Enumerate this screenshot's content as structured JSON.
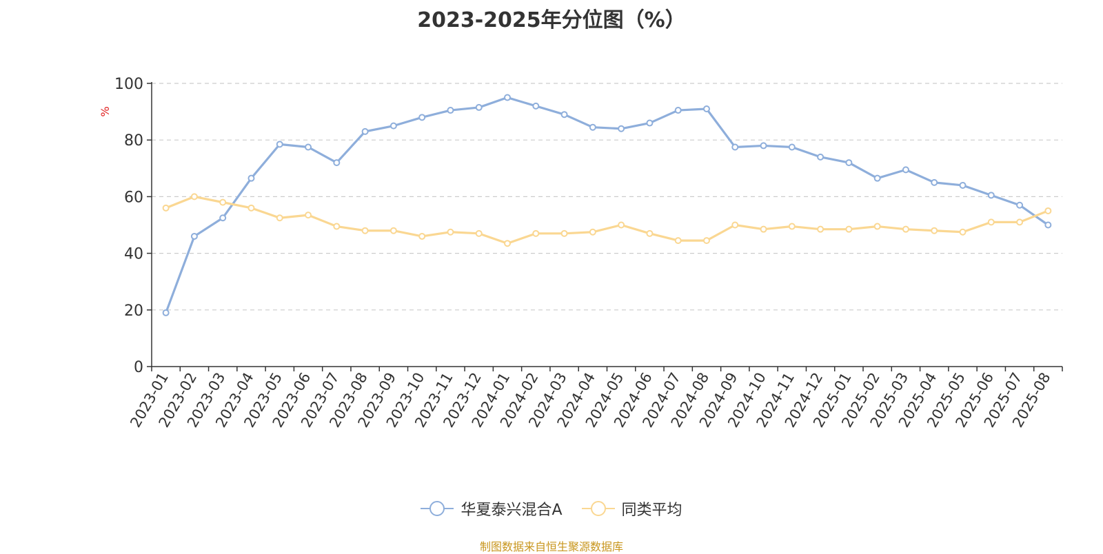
{
  "chart_data": {
    "type": "line",
    "title": "2023-2025年分位图（%）",
    "ylabel": "%",
    "xlabel": "",
    "ylim": [
      0,
      100
    ],
    "yticks": [
      0,
      20,
      40,
      60,
      80,
      100
    ],
    "grid": "horizontal-dashed",
    "legend_position": "bottom-center",
    "categories": [
      "2023-01",
      "2023-02",
      "2023-03",
      "2023-04",
      "2023-05",
      "2023-06",
      "2023-07",
      "2023-08",
      "2023-09",
      "2023-10",
      "2023-11",
      "2023-12",
      "2024-01",
      "2024-02",
      "2024-03",
      "2024-04",
      "2024-05",
      "2024-06",
      "2024-07",
      "2024-08",
      "2024-09",
      "2024-10",
      "2024-11",
      "2024-12",
      "2025-01",
      "2025-02",
      "2025-03",
      "2025-04",
      "2025-05",
      "2025-06",
      "2025-07",
      "2025-08"
    ],
    "series": [
      {
        "name": "华夏泰兴混合A",
        "color": "#8eaedb",
        "values": [
          19,
          46,
          52.5,
          66.5,
          78.5,
          77.5,
          72,
          83,
          85,
          88,
          90.5,
          91.5,
          95,
          92,
          89,
          84.5,
          84,
          86,
          90.5,
          91,
          77.5,
          78,
          77.5,
          74,
          72,
          66.5,
          69.5,
          65,
          64,
          60.5,
          57,
          50
        ]
      },
      {
        "name": "同类平均",
        "color": "#fad792",
        "values": [
          56,
          60,
          58,
          56,
          52.5,
          53.5,
          49.5,
          48,
          48,
          46,
          47.5,
          47,
          43.5,
          47,
          47,
          47.5,
          50,
          47,
          44.5,
          44.5,
          50,
          48.5,
          49.5,
          48.5,
          48.5,
          49.5,
          48.5,
          48,
          47.5,
          51,
          51,
          55
        ]
      }
    ]
  },
  "footer": {
    "credit": "制图数据来自恒生聚源数据库",
    "credit_color": "#c8961e"
  }
}
